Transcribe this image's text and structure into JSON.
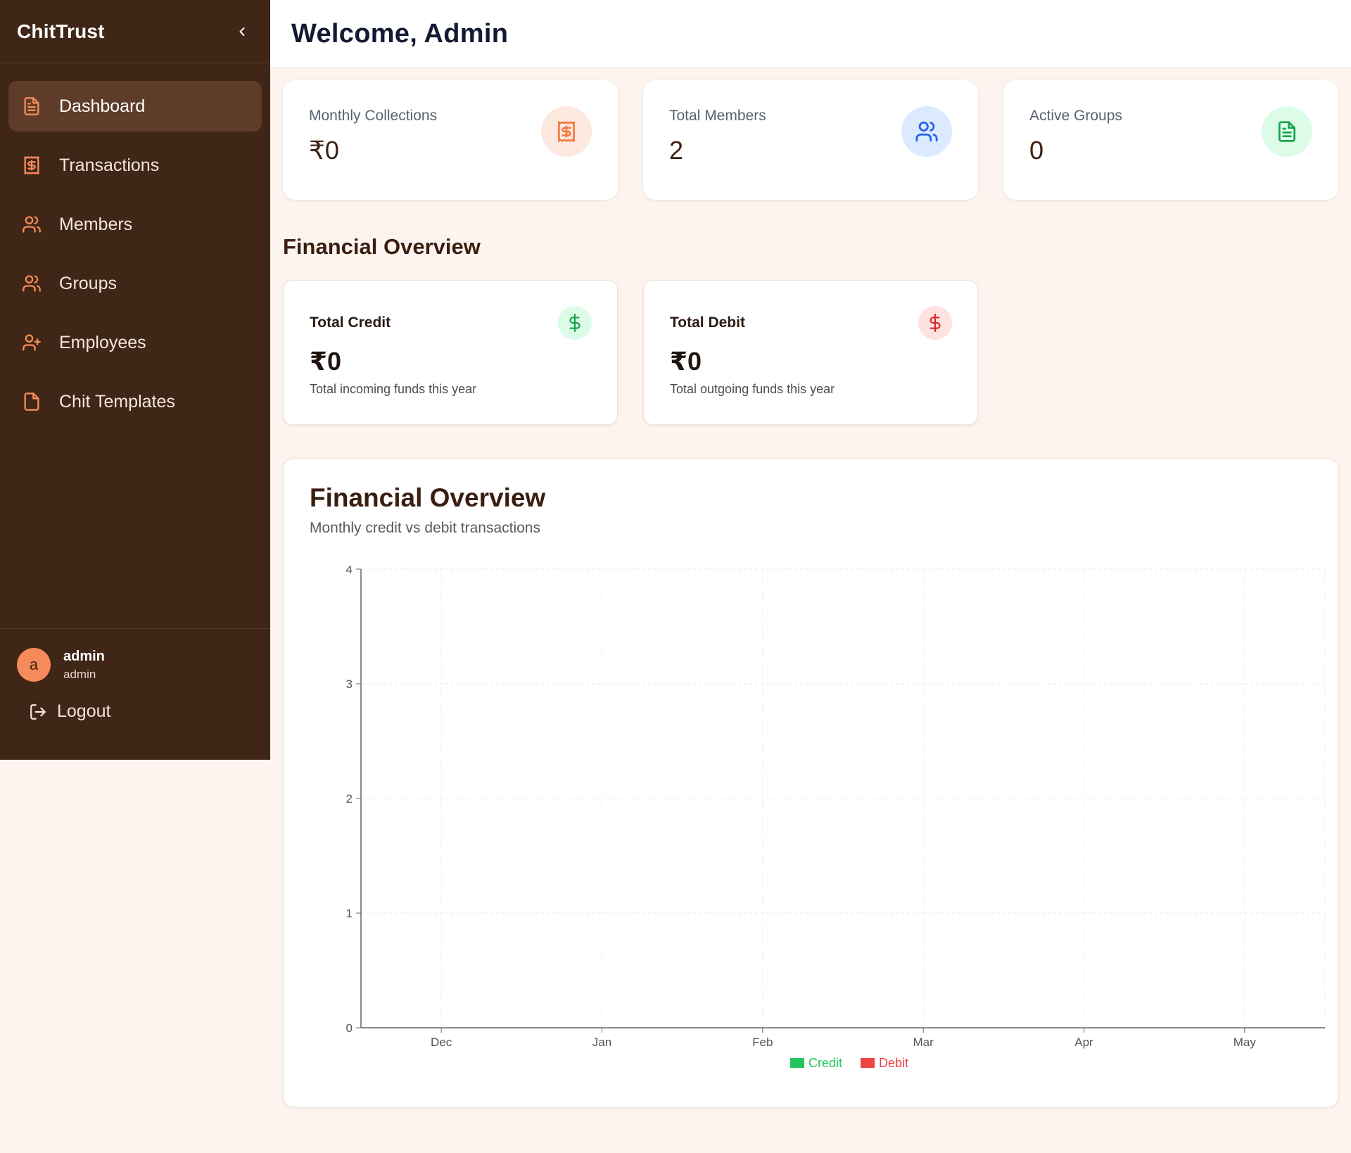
{
  "sidebar": {
    "brand": "ChitTrust",
    "items": [
      {
        "label": "Dashboard",
        "icon": "file-text-icon",
        "active": true
      },
      {
        "label": "Transactions",
        "icon": "receipt-icon"
      },
      {
        "label": "Members",
        "icon": "users-icon"
      },
      {
        "label": "Groups",
        "icon": "users-icon"
      },
      {
        "label": "Employees",
        "icon": "user-plus-icon"
      },
      {
        "label": "Chit Templates",
        "icon": "file-icon"
      }
    ],
    "user": {
      "initial": "a",
      "name": "admin",
      "role": "admin"
    },
    "logout_label": "Logout"
  },
  "header": {
    "title": "Welcome, Admin"
  },
  "stats": [
    {
      "label": "Monthly Collections",
      "value": "₹0",
      "icon": "receipt-icon",
      "color": "#f47a3f",
      "bg": "#fde9e0"
    },
    {
      "label": "Total Members",
      "value": "2",
      "icon": "users-icon",
      "color": "#2563eb",
      "bg": "#dbeafe"
    },
    {
      "label": "Active Groups",
      "value": "0",
      "icon": "file-text-icon",
      "color": "#16a34a",
      "bg": "#dcfce7"
    }
  ],
  "financial_section_title": "Financial Overview",
  "financial_cards": [
    {
      "label": "Total Credit",
      "value": "₹0",
      "subtitle": "Total incoming funds this year",
      "icon": "dollar-icon",
      "color": "#16a34a",
      "bg": "#dcfce7"
    },
    {
      "label": "Total Debit",
      "value": "₹0",
      "subtitle": "Total outgoing funds this year",
      "icon": "dollar-icon",
      "color": "#dc2626",
      "bg": "#fee2e2"
    }
  ],
  "chart_panel": {
    "title": "Financial Overview",
    "subtitle": "Monthly credit vs debit transactions"
  },
  "chart_data": {
    "type": "bar",
    "categories": [
      "Dec",
      "Jan",
      "Feb",
      "Mar",
      "Apr",
      "May"
    ],
    "series": [
      {
        "name": "Credit",
        "values": [
          0,
          0,
          0,
          0,
          0,
          0
        ],
        "color": "#22c55e"
      },
      {
        "name": "Debit",
        "values": [
          0,
          0,
          0,
          0,
          0,
          0
        ],
        "color": "#ef4444"
      }
    ],
    "ylim": [
      0,
      4
    ],
    "yticks": [
      "0",
      "1",
      "2",
      "3",
      "4"
    ],
    "grid": true,
    "legend": "bottom-center"
  }
}
